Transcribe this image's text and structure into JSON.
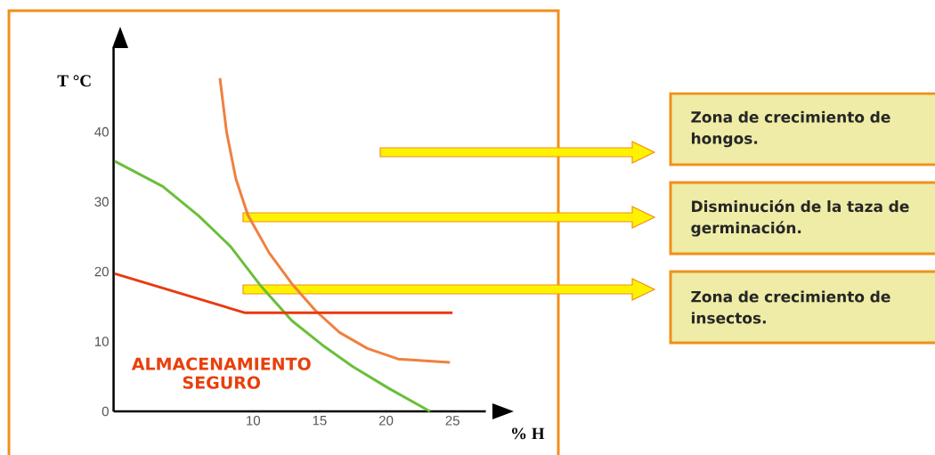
{
  "chart_data": {
    "type": "line",
    "xlabel": "% H",
    "ylabel": "T °C",
    "xlim": [
      -0.5,
      27.5
    ],
    "ylim": [
      0,
      52
    ],
    "xticks": [
      10,
      15,
      20,
      25
    ],
    "yticks": [
      0,
      10,
      20,
      30,
      40
    ],
    "series": [
      {
        "color": "#6abf3a",
        "x": [
          -0.4,
          3.2,
          5.9,
          8.3,
          10.6,
          12.9,
          15.2,
          17.5,
          20.2,
          23.3
        ],
        "values": [
          35.8,
          32.2,
          28,
          23.6,
          17.9,
          13,
          9.5,
          6.4,
          3.3,
          0
        ]
      },
      {
        "color": "#f08040",
        "x": [
          7.5,
          8.0,
          8.7,
          9.6,
          11.2,
          12.9,
          14.7,
          16.5,
          18.6,
          20.9,
          24.8
        ],
        "values": [
          47.7,
          40,
          33.3,
          28.1,
          22.7,
          18.3,
          14.4,
          11.3,
          9,
          7.5,
          7
        ]
      },
      {
        "color": "#e83a10",
        "x": [
          -0.4,
          9.4,
          25
        ],
        "values": [
          19.7,
          14.1,
          14.1
        ]
      }
    ],
    "annotations": [
      "Zona de crecimiento de hongos.",
      "Disminución de la taza de germinación.",
      "Zona de crecimiento de insectos.",
      "ALMACENAMIENTO SEGURO"
    ]
  }
}
